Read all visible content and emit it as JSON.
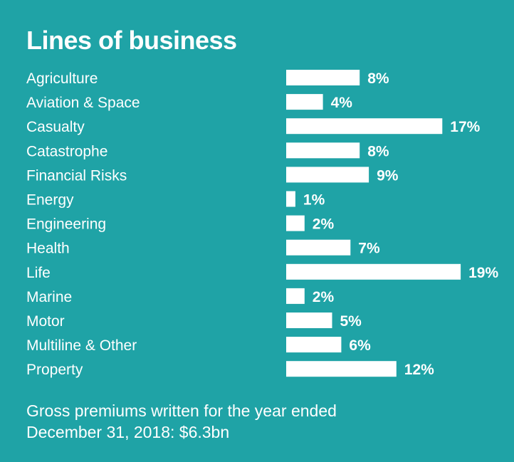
{
  "chart_data": {
    "type": "bar",
    "orientation": "horizontal",
    "title": "Lines of business",
    "categories": [
      "Agriculture",
      "Aviation & Space",
      "Casualty",
      "Catastrophe",
      "Financial Risks",
      "Energy",
      "Engineering",
      "Health",
      "Life",
      "Marine",
      "Motor",
      "Multiline & Other",
      "Property"
    ],
    "values": [
      8,
      4,
      17,
      8,
      9,
      1,
      2,
      7,
      19,
      2,
      5,
      6,
      12
    ],
    "value_labels": [
      "8%",
      "4%",
      "17%",
      "8%",
      "9%",
      "1%",
      "2%",
      "7%",
      "19%",
      "2%",
      "5%",
      "6%",
      "12%"
    ],
    "unit": "%",
    "grid": false,
    "xlabel": "",
    "ylabel": ""
  },
  "footnote": {
    "line1": "Gross premiums written for the year ended",
    "line2": "December 31, 2018: $6.3bn"
  },
  "colors": {
    "background": "#1fa3a6",
    "bar": "#ffffff",
    "text": "#ffffff"
  }
}
